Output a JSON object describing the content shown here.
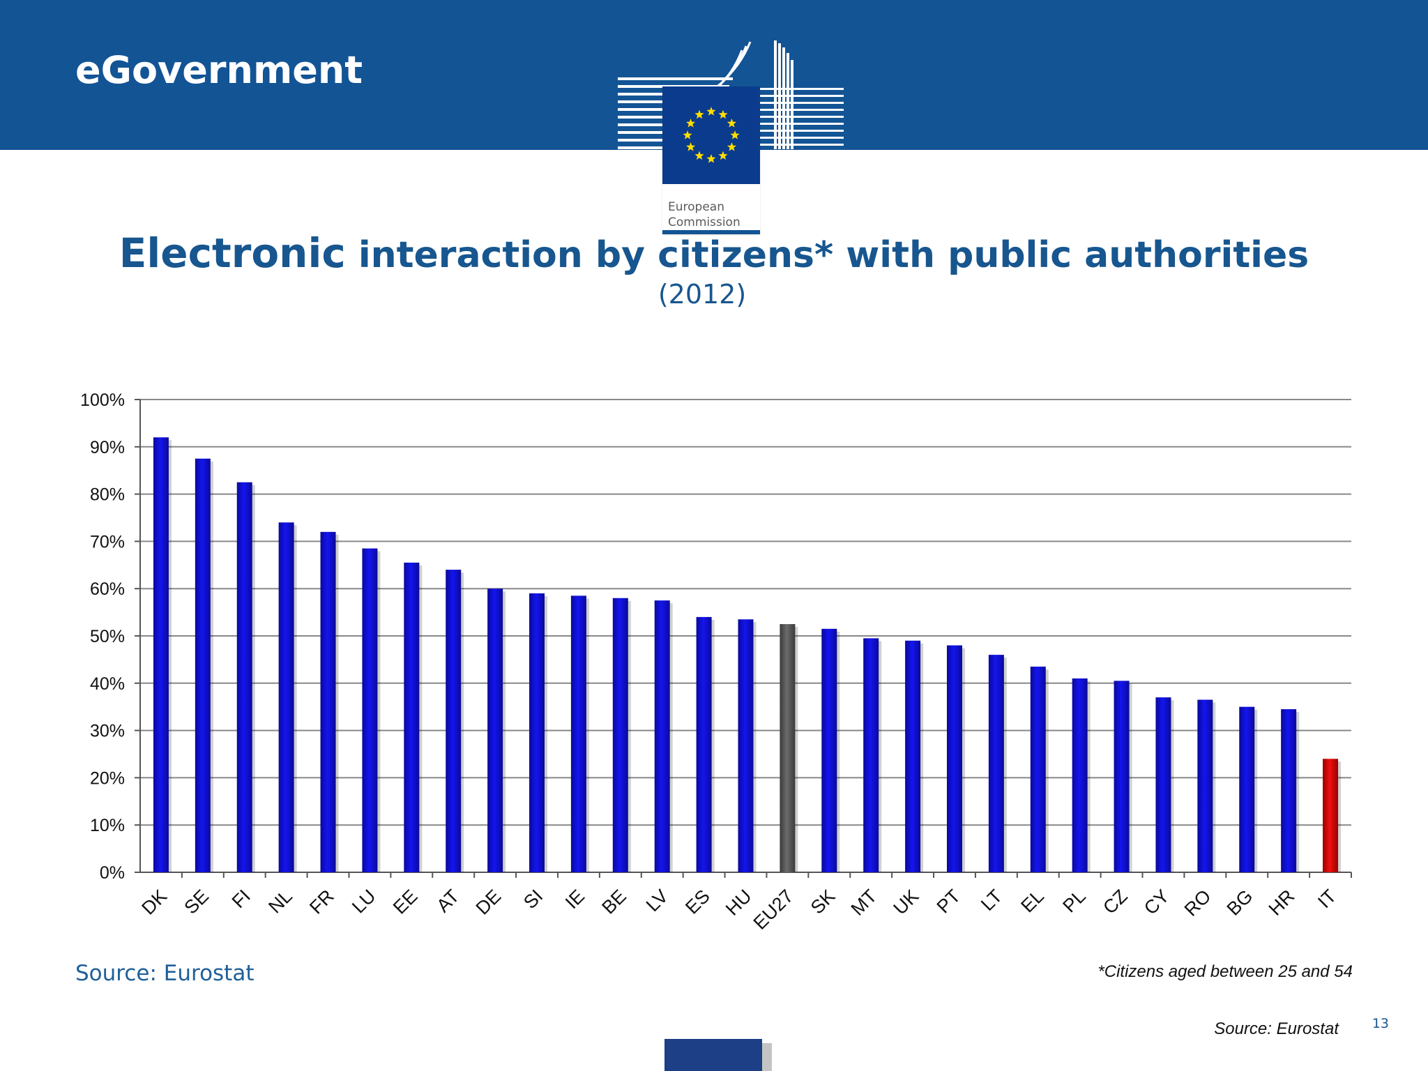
{
  "header": {
    "title": "eGovernment",
    "logo_name_line1": "European",
    "logo_name_line2": "Commission"
  },
  "slide": {
    "title_lead": "Electronic",
    "title_rest": " interaction by citizens* with public authorities",
    "subtitle": "(2012)"
  },
  "footer": {
    "source_left": "Source: Eurostat",
    "footnote": "*Citizens aged between 25 and 54",
    "source_right": "Source: Eurostat",
    "page_number": "13"
  },
  "colors": {
    "header_band": "#135495",
    "bar_country": "#1414f0",
    "bar_eu_average": "#6b6b6b",
    "bar_highlight": "#ee1111"
  },
  "chart_data": {
    "type": "bar",
    "title": "",
    "xlabel": "",
    "ylabel": "",
    "ylim": [
      0,
      100
    ],
    "y_ticks": [
      "0%",
      "10%",
      "20%",
      "30%",
      "40%",
      "50%",
      "60%",
      "70%",
      "80%",
      "90%",
      "100%"
    ],
    "grid": true,
    "legend": "none",
    "categories": [
      "DK",
      "SE",
      "FI",
      "NL",
      "FR",
      "LU",
      "EE",
      "AT",
      "DE",
      "SI",
      "IE",
      "BE",
      "LV",
      "ES",
      "HU",
      "EU27",
      "SK",
      "MT",
      "UK",
      "PT",
      "LT",
      "EL",
      "PL",
      "CZ",
      "CY",
      "RO",
      "BG",
      "HR",
      "IT"
    ],
    "values": [
      92,
      87.5,
      82.5,
      74,
      72,
      68.5,
      65.5,
      64,
      60,
      59,
      58.5,
      58,
      57.5,
      54,
      53.5,
      52.5,
      51.5,
      49.5,
      49,
      48,
      46,
      43.5,
      41,
      40.5,
      37,
      36.5,
      35,
      34.5,
      24
    ],
    "highlight": {
      "EU27": "eu_average",
      "IT": "highlight"
    }
  }
}
